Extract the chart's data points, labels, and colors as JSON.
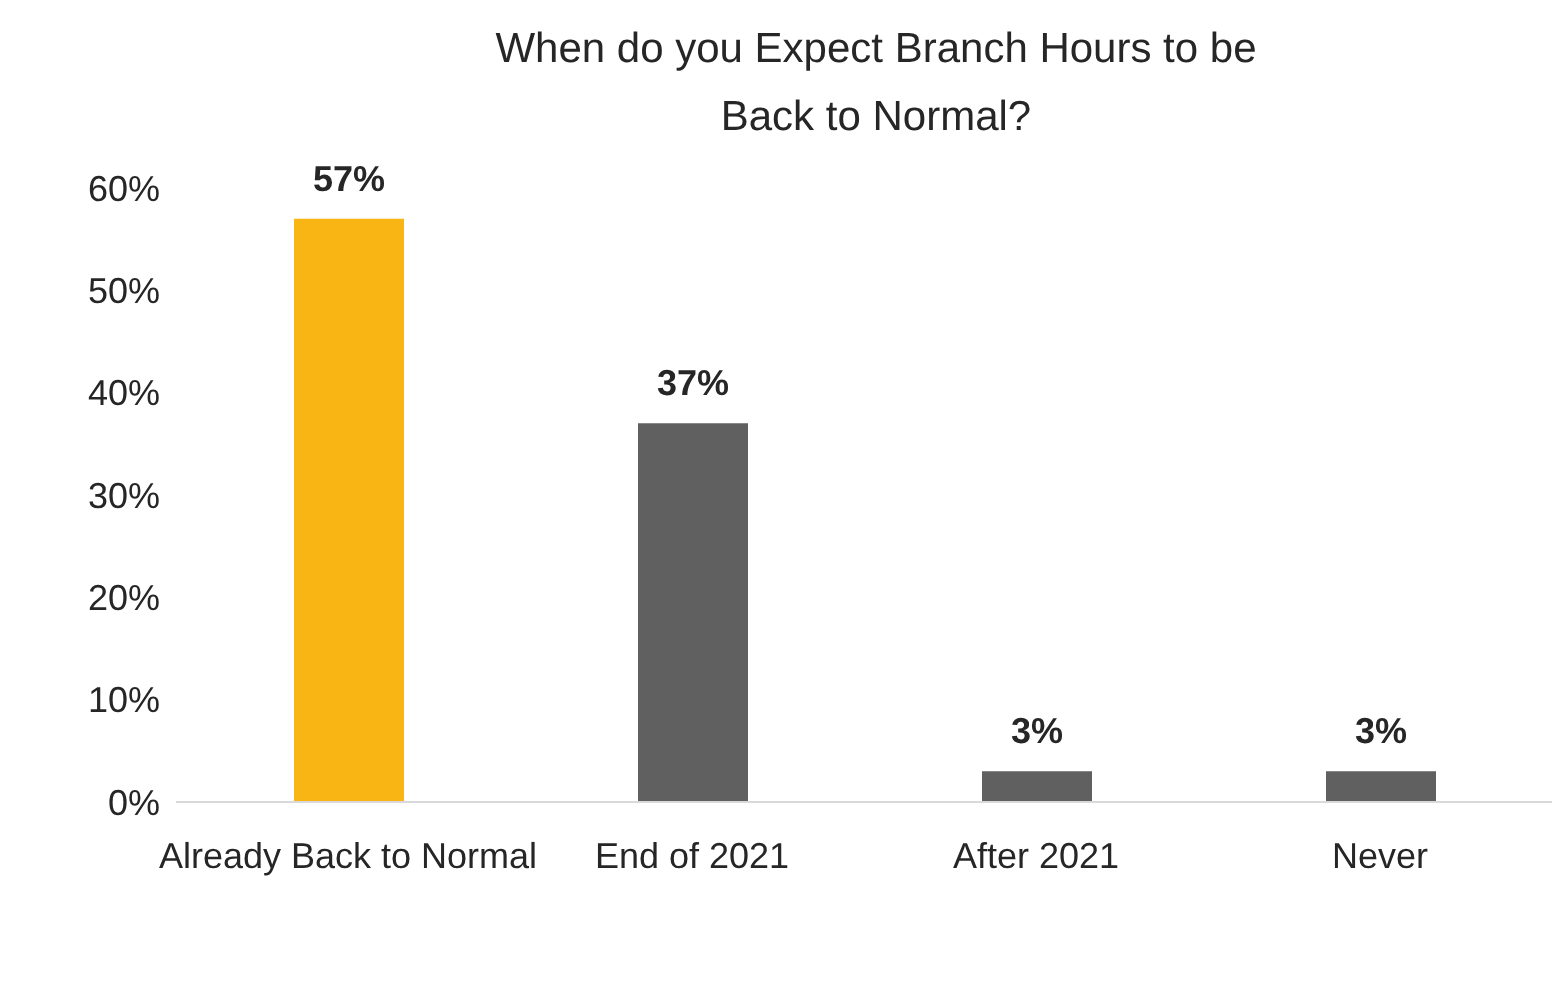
{
  "chart_data": {
    "type": "bar",
    "title": "When do you Expect Branch Hours to be Back to Normal?",
    "categories": [
      "Already Back to Normal",
      "End of 2021",
      "After 2021",
      "Never"
    ],
    "values": [
      57,
      37,
      3,
      3
    ],
    "colors": [
      "#f9b514",
      "#606060",
      "#606060",
      "#606060"
    ],
    "value_labels": [
      "57%",
      "37%",
      "3%",
      "3%"
    ],
    "ylim": [
      0,
      60
    ],
    "yticks": [
      {
        "value": 0,
        "label": "0%"
      },
      {
        "value": 10,
        "label": "10%"
      },
      {
        "value": 20,
        "label": "20%"
      },
      {
        "value": 30,
        "label": "30%"
      },
      {
        "value": 40,
        "label": "40%"
      },
      {
        "value": 50,
        "label": "50%"
      },
      {
        "value": 60,
        "label": "60%"
      }
    ],
    "grid": false,
    "legend": false
  }
}
